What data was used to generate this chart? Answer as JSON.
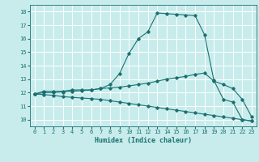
{
  "xlabel": "Humidex (Indice chaleur)",
  "ylabel": "",
  "bg_color": "#c8ecec",
  "line_color": "#1a7070",
  "grid_color": "#ffffff",
  "xlim": [
    -0.5,
    23.5
  ],
  "ylim": [
    9.5,
    18.5
  ],
  "xticks": [
    0,
    1,
    2,
    3,
    4,
    5,
    6,
    7,
    8,
    9,
    10,
    11,
    12,
    13,
    14,
    15,
    16,
    17,
    18,
    19,
    20,
    21,
    22,
    23
  ],
  "yticks": [
    10,
    11,
    12,
    13,
    14,
    15,
    16,
    17,
    18
  ],
  "line1_x": [
    0,
    1,
    2,
    3,
    4,
    5,
    6,
    7,
    8,
    9,
    10,
    11,
    12,
    13,
    14,
    15,
    16,
    17,
    18,
    19,
    20,
    21,
    22,
    23
  ],
  "line1_y": [
    11.9,
    12.1,
    12.1,
    12.1,
    12.2,
    12.2,
    12.2,
    12.3,
    12.6,
    13.4,
    14.9,
    16.0,
    16.5,
    17.9,
    17.85,
    17.8,
    17.75,
    17.7,
    16.3,
    12.9,
    11.5,
    11.3,
    10.0,
    9.9
  ],
  "line2_x": [
    0,
    1,
    2,
    3,
    4,
    5,
    6,
    7,
    8,
    9,
    10,
    11,
    12,
    13,
    14,
    15,
    16,
    17,
    18,
    19,
    20,
    21,
    22,
    23
  ],
  "line2_y": [
    11.9,
    12.0,
    12.0,
    12.05,
    12.1,
    12.15,
    12.2,
    12.3,
    12.35,
    12.4,
    12.5,
    12.6,
    12.7,
    12.85,
    13.0,
    13.1,
    13.2,
    13.35,
    13.45,
    12.85,
    12.6,
    12.3,
    11.5,
    10.2
  ],
  "line3_x": [
    0,
    1,
    2,
    3,
    4,
    5,
    6,
    7,
    8,
    9,
    10,
    11,
    12,
    13,
    14,
    15,
    16,
    17,
    18,
    19,
    20,
    21,
    22,
    23
  ],
  "line3_y": [
    11.9,
    11.85,
    11.8,
    11.7,
    11.65,
    11.6,
    11.55,
    11.5,
    11.4,
    11.3,
    11.2,
    11.1,
    11.0,
    10.9,
    10.8,
    10.7,
    10.6,
    10.5,
    10.4,
    10.3,
    10.2,
    10.1,
    10.0,
    9.9
  ],
  "figsize": [
    3.2,
    2.0
  ],
  "dpi": 100
}
